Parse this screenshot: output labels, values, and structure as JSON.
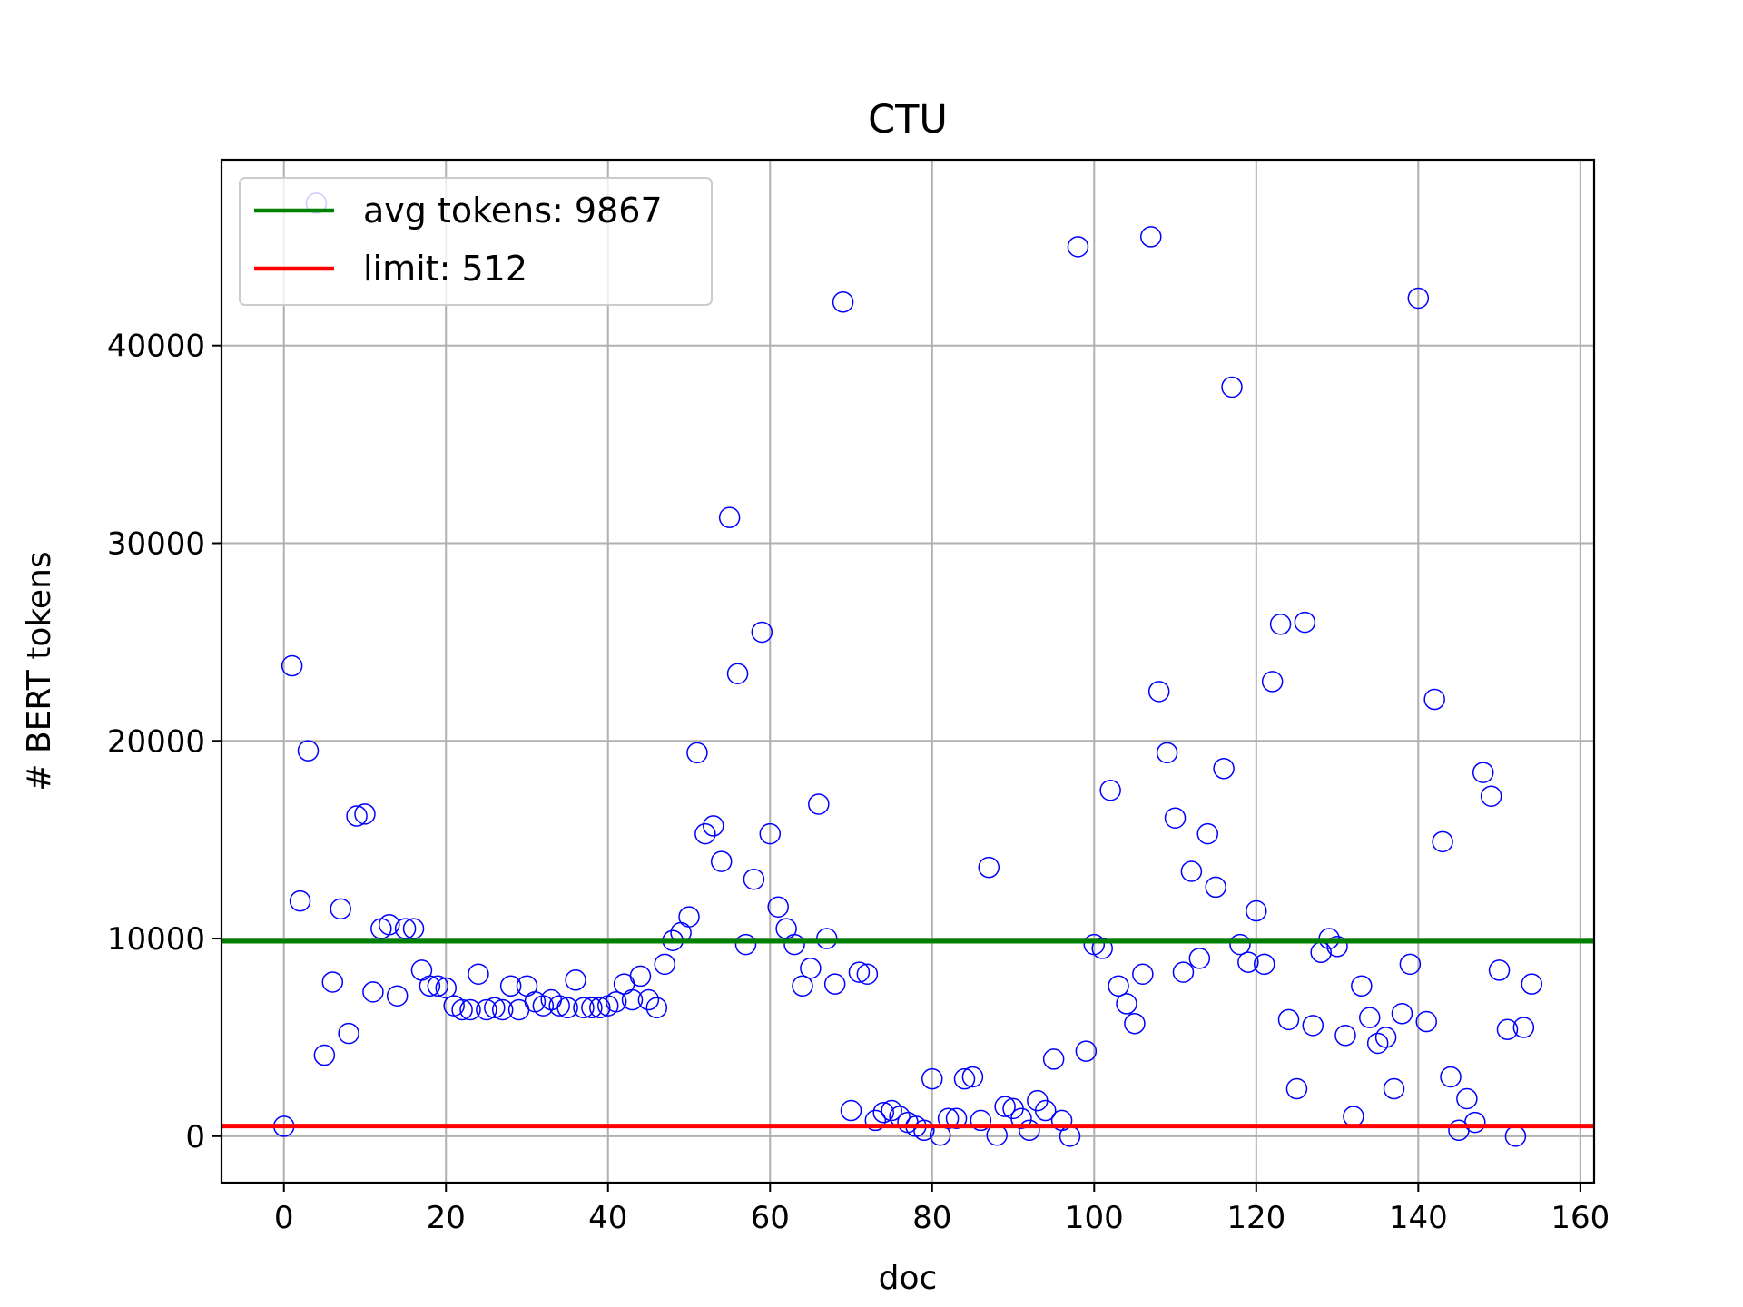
{
  "chart_data": {
    "type": "scatter",
    "title": "CTU",
    "xlabel": "doc",
    "ylabel": "# BERT tokens",
    "xlim": [
      -7.7,
      161.7
    ],
    "ylim": [
      -2350,
      49400
    ],
    "xticks": [
      0,
      20,
      40,
      60,
      80,
      100,
      120,
      140,
      160
    ],
    "yticks": [
      0,
      10000,
      20000,
      30000,
      40000
    ],
    "grid": true,
    "legend_position": "top-left",
    "marker": "open-circle",
    "series": [
      {
        "name": "",
        "color": "#0000ff",
        "x": [
          0,
          1,
          2,
          3,
          4,
          5,
          6,
          7,
          8,
          9,
          10,
          11,
          12,
          13,
          14,
          15,
          16,
          17,
          18,
          19,
          20,
          21,
          22,
          23,
          24,
          25,
          26,
          27,
          28,
          29,
          30,
          31,
          32,
          33,
          34,
          35,
          36,
          37,
          38,
          39,
          40,
          41,
          42,
          43,
          44,
          45,
          46,
          47,
          48,
          49,
          50,
          51,
          52,
          53,
          54,
          55,
          56,
          57,
          58,
          59,
          60,
          61,
          62,
          63,
          64,
          65,
          66,
          67,
          68,
          69,
          70,
          71,
          72,
          73,
          74,
          75,
          76,
          77,
          78,
          79,
          80,
          81,
          82,
          83,
          84,
          85,
          86,
          87,
          88,
          89,
          90,
          91,
          92,
          93,
          94,
          95,
          96,
          97,
          98,
          99,
          100,
          101,
          102,
          103,
          104,
          105,
          106,
          107,
          108,
          109,
          110,
          111,
          112,
          113,
          114,
          115,
          116,
          117,
          118,
          119,
          120,
          121,
          122,
          123,
          124,
          125,
          126,
          127,
          128,
          129,
          130,
          131,
          132,
          133,
          134,
          135,
          136,
          137,
          138,
          139,
          140,
          141,
          142,
          143,
          144,
          145,
          146,
          147,
          148,
          149,
          150,
          151,
          152,
          153,
          154
        ],
        "y": [
          500,
          23800,
          11900,
          19500,
          47200,
          4100,
          7800,
          11500,
          5200,
          16200,
          16300,
          7300,
          10500,
          10700,
          7100,
          10500,
          10500,
          8400,
          7600,
          7600,
          7500,
          6600,
          6400,
          6400,
          8200,
          6400,
          6500,
          6400,
          7600,
          6400,
          7600,
          6800,
          6600,
          6900,
          6600,
          6500,
          7900,
          6500,
          6500,
          6500,
          6600,
          6800,
          7700,
          6900,
          8100,
          6900,
          6500,
          8700,
          9900,
          10300,
          11100,
          19400,
          15300,
          15700,
          13900,
          31300,
          23400,
          9700,
          13000,
          25500,
          15300,
          11600,
          10500,
          9700,
          7600,
          8500,
          16800,
          10000,
          7700,
          42200,
          1300,
          8300,
          8200,
          800,
          1200,
          1300,
          1000,
          700,
          500,
          300,
          2900,
          50,
          900,
          900,
          2900,
          3000,
          800,
          13600,
          50,
          1500,
          1400,
          900,
          300,
          1800,
          1300,
          3900,
          800,
          0,
          45000,
          4300,
          9700,
          9500,
          17500,
          7600,
          6700,
          5700,
          8200,
          45500,
          22500,
          19400,
          16100,
          8300,
          13400,
          9000,
          15300,
          12600,
          18600,
          37900,
          9700,
          8800,
          11400,
          8700,
          23000,
          25900,
          5900,
          2400,
          26000,
          5600,
          9300,
          10000,
          9600,
          5100,
          1000,
          7600,
          6000,
          4700,
          5000,
          2400,
          6200,
          8700,
          42400,
          5800,
          22100,
          14900,
          3000,
          300,
          1900,
          700,
          18400,
          17200,
          8400,
          5400,
          0,
          5500,
          7700
        ]
      }
    ],
    "lines": [
      {
        "name": "avg tokens: 9867",
        "y": 9867,
        "color": "#008000"
      },
      {
        "name": "limit: 512",
        "y": 512,
        "color": "#ff0000"
      }
    ]
  }
}
